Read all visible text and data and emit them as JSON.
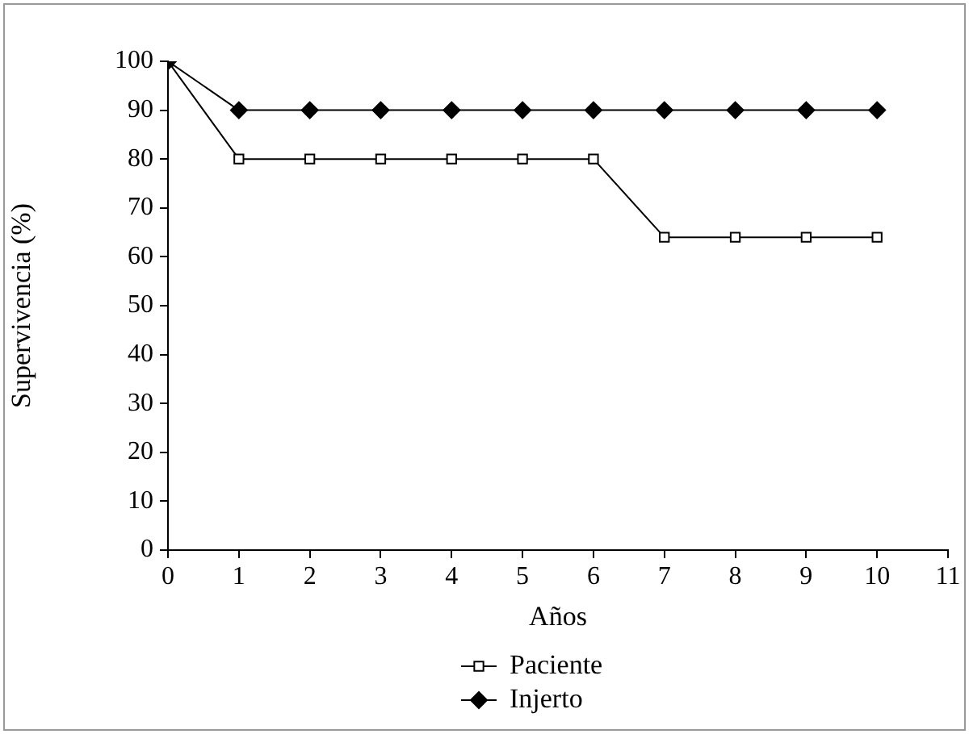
{
  "chart_data": {
    "type": "line",
    "xlabel": "Años",
    "ylabel": "Supervivencia (%)",
    "x": [
      0,
      1,
      2,
      3,
      4,
      5,
      6,
      7,
      8,
      9,
      10
    ],
    "series": [
      {
        "name": "Paciente",
        "color": "#000000",
        "marker": "square",
        "values": [
          100,
          80,
          80,
          80,
          80,
          80,
          80,
          64,
          64,
          64,
          64
        ]
      },
      {
        "name": "Injerto",
        "color": "#000000",
        "marker": "diamond",
        "values": [
          100,
          90,
          90,
          90,
          90,
          90,
          90,
          90,
          90,
          90,
          90
        ]
      }
    ],
    "xlim": [
      0,
      11
    ],
    "xticks": [
      0,
      1,
      2,
      3,
      4,
      5,
      6,
      7,
      8,
      9,
      10,
      11
    ],
    "ylim": [
      0,
      100
    ],
    "yticks": [
      0,
      10,
      20,
      30,
      40,
      50,
      60,
      70,
      80,
      90,
      100
    ],
    "grid": false,
    "legend": "bottom",
    "line_style": "solid"
  }
}
